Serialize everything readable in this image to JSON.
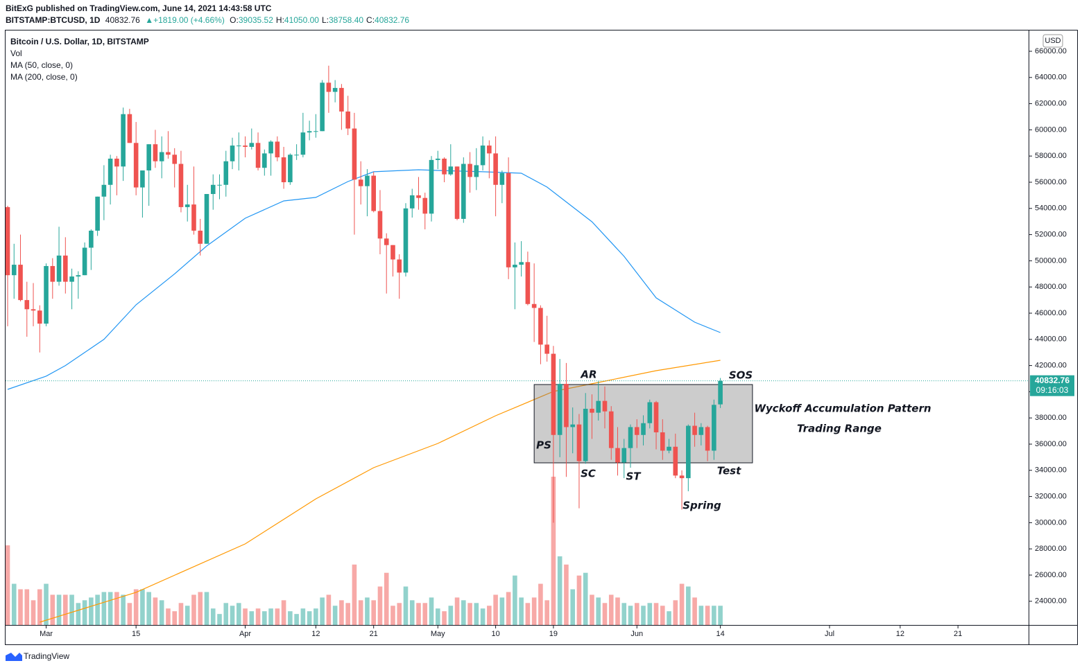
{
  "header": {
    "publisher": "BitExG published on TradingView.com, June 14, 2021 14:43:58 UTC",
    "symbol": "BITSTAMP:BTCUSD, 1D",
    "last": "40832.76",
    "change": "▲+1819.00 (+4.66%)",
    "ohlc": [
      {
        "k": "O:",
        "v": "39035.52"
      },
      {
        "k": "H:",
        "v": "41050.00"
      },
      {
        "k": "L:",
        "v": "38758.40"
      },
      {
        "k": "C:",
        "v": "40832.76"
      }
    ]
  },
  "legend": [
    "Bitcoin / U.S. Dollar, 1D, BITSTAMP",
    "Vol",
    "MA (50, close, 0)",
    "MA (200, close, 0)"
  ],
  "currency": "USD",
  "price_label": "40832.76",
  "countdown": "09:16:03",
  "footer": "TradingView",
  "chart_data": {
    "type": "candlestick",
    "up_color": "#26a69a",
    "down_color": "#ef5350",
    "x": [
      "2021-02-23",
      "2021-02-24",
      "2021-02-25",
      "2021-02-26",
      "2021-02-27",
      "2021-02-28",
      "2021-03-01",
      "2021-03-02",
      "2021-03-03",
      "2021-03-04",
      "2021-03-05",
      "2021-03-06",
      "2021-03-07",
      "2021-03-08",
      "2021-03-09",
      "2021-03-10",
      "2021-03-11",
      "2021-03-12",
      "2021-03-13",
      "2021-03-14",
      "2021-03-15",
      "2021-03-16",
      "2021-03-17",
      "2021-03-18",
      "2021-03-19",
      "2021-03-20",
      "2021-03-21",
      "2021-03-22",
      "2021-03-23",
      "2021-03-24",
      "2021-03-25",
      "2021-03-26",
      "2021-03-27",
      "2021-03-28",
      "2021-03-29",
      "2021-03-30",
      "2021-03-31",
      "2021-04-01",
      "2021-04-02",
      "2021-04-03",
      "2021-04-04",
      "2021-04-05",
      "2021-04-06",
      "2021-04-07",
      "2021-04-08",
      "2021-04-09",
      "2021-04-10",
      "2021-04-11",
      "2021-04-12",
      "2021-04-13",
      "2021-04-14",
      "2021-04-15",
      "2021-04-16",
      "2021-04-17",
      "2021-04-18",
      "2021-04-19",
      "2021-04-20",
      "2021-04-21",
      "2021-04-22",
      "2021-04-23",
      "2021-04-24",
      "2021-04-25",
      "2021-04-26",
      "2021-04-27",
      "2021-04-28",
      "2021-04-29",
      "2021-04-30",
      "2021-05-01",
      "2021-05-02",
      "2021-05-03",
      "2021-05-04",
      "2021-05-05",
      "2021-05-06",
      "2021-05-07",
      "2021-05-08",
      "2021-05-09",
      "2021-05-10",
      "2021-05-11",
      "2021-05-12",
      "2021-05-13",
      "2021-05-14",
      "2021-05-15",
      "2021-05-16",
      "2021-05-17",
      "2021-05-18",
      "2021-05-19",
      "2021-05-20",
      "2021-05-21",
      "2021-05-22",
      "2021-05-23",
      "2021-05-24",
      "2021-05-25",
      "2021-05-26",
      "2021-05-27",
      "2021-05-28",
      "2021-05-29",
      "2021-05-30",
      "2021-05-31",
      "2021-06-01",
      "2021-06-02",
      "2021-06-03",
      "2021-06-04",
      "2021-06-05",
      "2021-06-06",
      "2021-06-07",
      "2021-06-08",
      "2021-06-09",
      "2021-06-10",
      "2021-06-11",
      "2021-06-12",
      "2021-06-13",
      "2021-06-14"
    ],
    "open": [
      54100,
      48900,
      49700,
      47000,
      46300,
      46200,
      45200,
      49600,
      48400,
      50400,
      48400,
      48800,
      48900,
      51000,
      52300,
      54900,
      55800,
      57800,
      57200,
      61200,
      59000,
      55600,
      56900,
      58900,
      57600,
      58300,
      58100,
      57400,
      54100,
      54300,
      52300,
      51300,
      55100,
      55800,
      55800,
      57600,
      58800,
      58800,
      58700,
      59000,
      57100,
      58200,
      59100,
      57900,
      56000,
      58100,
      58100,
      59800,
      59900,
      59900,
      63600,
      62900,
      63200,
      61400,
      60100,
      56200,
      55700,
      56500,
      53800,
      51700,
      51200,
      50100,
      49100,
      54000,
      55000,
      54800,
      53600,
      57700,
      57800,
      56600,
      57200,
      53200,
      57400,
      56400,
      57300,
      58800,
      58200,
      55800,
      56700,
      49500,
      49700,
      49900,
      46700,
      46400,
      43600,
      42900,
      36700,
      40600,
      37300,
      37500,
      34700,
      38700,
      38400,
      39300,
      38500,
      35700,
      34600,
      35700,
      37300,
      36700,
      37600,
      39200,
      36900,
      35500,
      35800,
      33600,
      33400,
      37400,
      36700,
      37300,
      35500,
      39035.52
    ],
    "high": [
      54200,
      51300,
      52000,
      48400,
      48300,
      46600,
      49800,
      50200,
      52600,
      51800,
      49400,
      49200,
      51400,
      52400,
      54900,
      57300,
      58100,
      58000,
      61700,
      61600,
      60600,
      56900,
      58900,
      60000,
      59500,
      59900,
      58600,
      58400,
      55800,
      57200,
      53200,
      55100,
      56600,
      56600,
      58400,
      59400,
      59800,
      59500,
      60100,
      59800,
      58500,
      59200,
      59500,
      58700,
      58200,
      58900,
      61300,
      60700,
      61200,
      63800,
      64900,
      63800,
      63500,
      62600,
      61300,
      57600,
      57000,
      56800,
      55400,
      52100,
      51200,
      50500,
      54400,
      55500,
      56400,
      55200,
      58000,
      58400,
      57900,
      58900,
      57200,
      57900,
      58300,
      58600,
      59500,
      59200,
      59500,
      56900,
      57900,
      51400,
      51500,
      50700,
      49800,
      46600,
      45800,
      43500,
      42500,
      42200,
      38800,
      38300,
      39900,
      39800,
      40800,
      40400,
      38900,
      37300,
      36400,
      37500,
      37900,
      38200,
      39400,
      39300,
      37900,
      36400,
      36800,
      34000,
      37500,
      38400,
      37600,
      37400,
      39400,
      41050
    ],
    "low": [
      45000,
      47100,
      46900,
      44200,
      45000,
      43000,
      45000,
      47100,
      48100,
      47500,
      46300,
      47100,
      48900,
      49300,
      51900,
      53100,
      54300,
      55000,
      56100,
      59000,
      55000,
      53300,
      54200,
      57100,
      56300,
      57800,
      55600,
      53700,
      53000,
      52000,
      50400,
      51300,
      53900,
      54700,
      54900,
      57000,
      56900,
      57900,
      58500,
      56900,
      56500,
      56500,
      57600,
      55500,
      55800,
      57700,
      57900,
      59200,
      59400,
      59900,
      61300,
      62100,
      60000,
      59600,
      52000,
      54300,
      53400,
      53700,
      50500,
      47500,
      48800,
      47100,
      48800,
      53300,
      53900,
      52400,
      53000,
      57000,
      56000,
      56500,
      53100,
      52900,
      55200,
      55400,
      56900,
      56300,
      53400,
      54400,
      48600,
      46300,
      48800,
      46600,
      43800,
      42100,
      42300,
      30000,
      35000,
      33500,
      35300,
      31100,
      34500,
      36400,
      37800,
      37200,
      34800,
      33600,
      33400,
      34200,
      35700,
      35900,
      37200,
      35600,
      34800,
      35300,
      33400,
      31000,
      32400,
      35800,
      35900,
      34700,
      34800,
      38758.4
    ],
    "close": [
      48900,
      49700,
      47000,
      46300,
      46200,
      45200,
      49600,
      48400,
      50400,
      48400,
      48800,
      48900,
      51000,
      52300,
      54900,
      55800,
      57800,
      57200,
      61200,
      59000,
      55600,
      56900,
      58900,
      57600,
      58300,
      58100,
      57400,
      54100,
      54300,
      52300,
      51300,
      55100,
      55800,
      55800,
      57600,
      58800,
      58800,
      58700,
      59000,
      57100,
      58200,
      59100,
      57900,
      56000,
      58100,
      58100,
      59800,
      59900,
      59900,
      63600,
      62900,
      63200,
      61400,
      60100,
      56200,
      55700,
      56500,
      53800,
      51700,
      51200,
      50100,
      49100,
      54000,
      55000,
      54800,
      53600,
      57700,
      57800,
      56600,
      57200,
      53200,
      57400,
      56400,
      57300,
      58800,
      58200,
      55800,
      56700,
      49500,
      49700,
      49900,
      46700,
      46400,
      43600,
      42900,
      36700,
      40600,
      37300,
      37500,
      34700,
      38700,
      38400,
      39300,
      38500,
      35700,
      34600,
      35700,
      37300,
      36700,
      37600,
      39200,
      36900,
      35500,
      35800,
      33600,
      33400,
      37400,
      36700,
      37300,
      35500,
      39000,
      40832.76
    ],
    "volume": [
      29,
      15,
      13,
      13,
      9,
      13,
      15,
      11,
      11,
      11,
      11,
      8,
      9,
      10,
      11,
      12,
      12,
      12,
      11,
      8,
      13,
      13,
      12,
      10,
      9,
      6,
      5,
      8,
      7,
      11,
      12,
      12,
      6,
      4,
      8,
      7,
      8,
      6,
      5,
      6,
      5,
      6,
      6,
      9,
      5,
      4,
      6,
      5,
      6,
      10,
      11,
      7,
      9,
      8,
      22,
      9,
      10,
      9,
      14,
      19,
      7,
      8,
      14,
      9,
      8,
      8,
      10,
      6,
      5,
      7,
      10,
      9,
      8,
      8,
      6,
      7,
      11,
      10,
      12,
      18,
      10,
      8,
      10,
      15,
      9,
      54,
      25,
      22,
      13,
      18,
      19,
      11,
      10,
      8,
      11,
      10,
      8,
      7,
      8,
      7,
      8,
      8,
      7,
      5,
      9,
      15,
      14,
      10,
      7,
      7,
      7,
      7
    ],
    "ma": [
      {
        "color": "#2196f3",
        "x": [
          "2021-02-23",
          "2021-03-01",
          "2021-03-04",
          "2021-03-10",
          "2021-03-15",
          "2021-03-21",
          "2021-03-26",
          "2021-04-01",
          "2021-04-07",
          "2021-04-12",
          "2021-04-17",
          "2021-04-21",
          "2021-04-28",
          "2021-05-01",
          "2021-05-08",
          "2021-05-14",
          "2021-05-18",
          "2021-05-25",
          "2021-05-30",
          "2021-06-04",
          "2021-06-10",
          "2021-06-14"
        ],
        "values": [
          40180,
          41190,
          42000,
          44000,
          46640,
          49000,
          51130,
          53250,
          54570,
          54840,
          56050,
          56800,
          56950,
          56900,
          56800,
          56690,
          55630,
          52980,
          50340,
          47170,
          45310,
          44520
        ]
      },
      {
        "color": "#ff9800",
        "x": [
          "2021-02-28",
          "2021-03-15",
          "2021-04-01",
          "2021-04-12",
          "2021-04-21",
          "2021-05-01",
          "2021-05-10",
          "2021-05-19",
          "2021-05-27",
          "2021-06-04",
          "2021-06-14"
        ],
        "values": [
          22400,
          24680,
          28380,
          31820,
          34200,
          36050,
          38170,
          40020,
          40810,
          41610,
          42400
        ]
      }
    ],
    "box": {
      "x": [
        "2021-05-16",
        "2021-06-19"
      ],
      "y": [
        34570,
        40550
      ]
    },
    "annotations": [
      "AR",
      "SOS",
      "Wyckoff Accumulation Pattern",
      "Trading Range",
      "PS",
      "SC",
      "ST",
      "Test",
      "Spring"
    ],
    "ylim": [
      22190,
      67640
    ],
    "yticks": [
      {
        "value": 24000,
        "label": "24000.00"
      },
      {
        "value": 26000,
        "label": "26000.00"
      },
      {
        "value": 28000,
        "label": "28000.00"
      },
      {
        "value": 30000,
        "label": "30000.00"
      },
      {
        "value": 32000,
        "label": "32000.00"
      },
      {
        "value": 34000,
        "label": "34000.00"
      },
      {
        "value": 36000,
        "label": "36000.00"
      },
      {
        "value": 38000,
        "label": "38000.00"
      },
      {
        "value": 40000,
        "label": "40000.00"
      },
      {
        "value": 42000,
        "label": "42000.00"
      },
      {
        "value": 44000,
        "label": "44000.00"
      },
      {
        "value": 46000,
        "label": "46000.00"
      },
      {
        "value": 48000,
        "label": "48000.00"
      },
      {
        "value": 50000,
        "label": "50000.00"
      },
      {
        "value": 52000,
        "label": "52000.00"
      },
      {
        "value": 54000,
        "label": "54000.00"
      },
      {
        "value": 56000,
        "label": "56000.00"
      },
      {
        "value": 58000,
        "label": "58000.00"
      },
      {
        "value": 60000,
        "label": "60000.00"
      },
      {
        "value": 62000,
        "label": "62000.00"
      },
      {
        "value": 64000,
        "label": "64000.00"
      },
      {
        "value": 66000,
        "label": "66000.00"
      }
    ],
    "xlim": [
      "2021-02-23",
      "2021-08-01"
    ],
    "xticks": [
      {
        "value": "2021-03-01",
        "label": "Mar"
      },
      {
        "value": "2021-03-15",
        "label": "15"
      },
      {
        "value": "2021-04-01",
        "label": "Apr"
      },
      {
        "value": "2021-04-12",
        "label": "12"
      },
      {
        "value": "2021-04-21",
        "label": "21"
      },
      {
        "value": "2021-05-01",
        "label": "May"
      },
      {
        "value": "2021-05-10",
        "label": "10"
      },
      {
        "value": "2021-05-19",
        "label": "19"
      },
      {
        "value": "2021-06-01",
        "label": "Jun"
      },
      {
        "value": "2021-06-14",
        "label": "14"
      },
      {
        "value": "2021-07-01",
        "label": "Jul"
      },
      {
        "value": "2021-07-12",
        "label": "12"
      },
      {
        "value": "2021-07-21",
        "label": "21"
      }
    ]
  }
}
